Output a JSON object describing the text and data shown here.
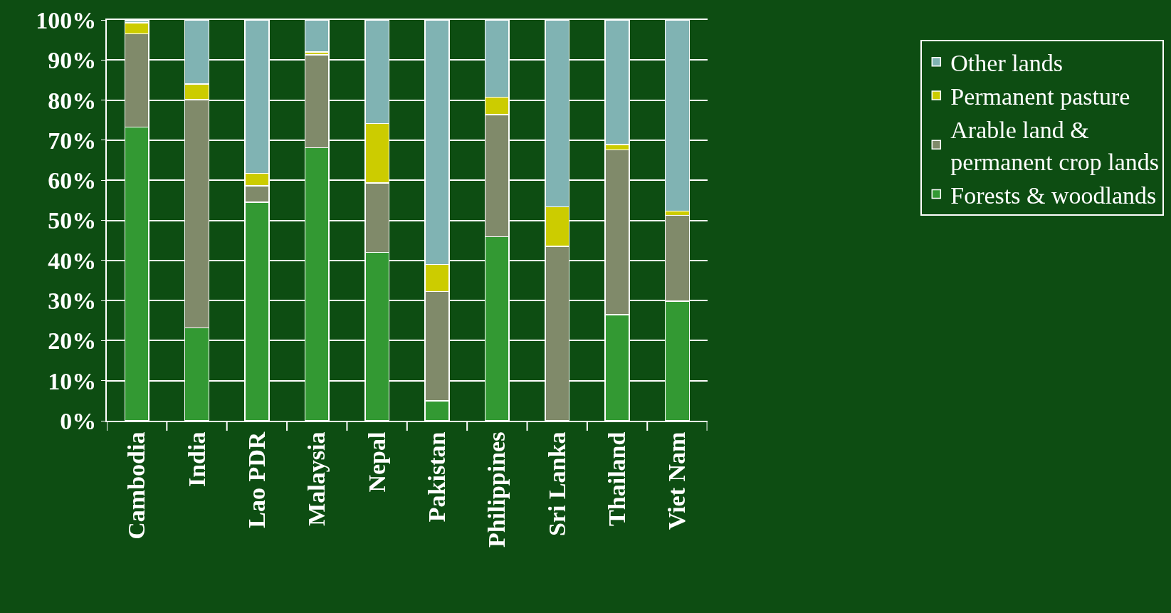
{
  "chart_data": {
    "type": "bar",
    "stacked": true,
    "categories": [
      "Cambodia",
      "India",
      "Lao PDR",
      "Malaysia",
      "Nepal",
      "Pakistan",
      "Philippines",
      "Sri Lanka",
      "Thailand",
      "Viet Nam"
    ],
    "series": [
      {
        "name": "Forests & woodlands",
        "color": "#339933",
        "values": [
          73.3,
          23.2,
          54.5,
          68.1,
          42,
          5,
          45.9,
          0,
          26.5,
          29.8
        ]
      },
      {
        "name": "Arable land & permanent crop lands",
        "color": "#808a6a",
        "values": [
          23.2,
          56.9,
          4.1,
          23.2,
          17.3,
          27.2,
          30.5,
          43.5,
          41.1,
          21.4
        ]
      },
      {
        "name": "Permanent pasture",
        "color": "#cccc00",
        "values": [
          2.8,
          3.9,
          3.1,
          0.7,
          14.9,
          6.8,
          4.3,
          9.9,
          1.3,
          1.1
        ]
      },
      {
        "name": "Other lands",
        "color": "#80b3b3",
        "values": [
          0.5,
          16,
          38.3,
          8,
          25.8,
          61,
          19.3,
          46.6,
          31.1,
          47.7
        ]
      }
    ],
    "ylim": [
      0,
      100
    ],
    "yticks": [
      {
        "value": 0,
        "label": "0%"
      },
      {
        "value": 10,
        "label": "10%"
      },
      {
        "value": 20,
        "label": "20%"
      },
      {
        "value": 30,
        "label": "30%"
      },
      {
        "value": 40,
        "label": "40%"
      },
      {
        "value": 50,
        "label": "50%"
      },
      {
        "value": 60,
        "label": "60%"
      },
      {
        "value": 70,
        "label": "70%"
      },
      {
        "value": 80,
        "label": "80%"
      },
      {
        "value": 90,
        "label": "90%"
      },
      {
        "value": 100,
        "label": "100%"
      }
    ],
    "grid": "y",
    "legend": "right"
  }
}
